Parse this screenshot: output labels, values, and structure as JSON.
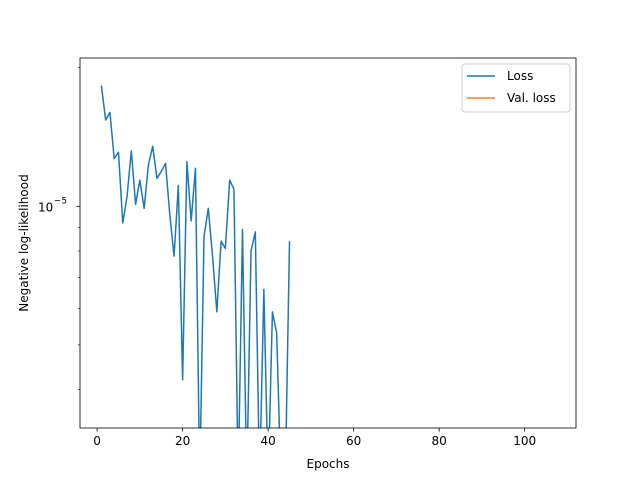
{
  "chart_data": {
    "type": "line",
    "xlabel": "Epochs",
    "ylabel": "Negative log-likelihood",
    "xlim": [
      -4,
      112
    ],
    "ylim": [
      3.3e-06,
      2.1e-05
    ],
    "yscale": "log",
    "grid": false,
    "legend_position": "top-right",
    "x_ticks": [
      0,
      20,
      40,
      60,
      80,
      100
    ],
    "x_tick_labels": [
      "0",
      "20",
      "40",
      "60",
      "80",
      "100"
    ],
    "y_ticks": [
      1e-05
    ],
    "y_tick_labels": [
      "10",
      "−5"
    ],
    "series": [
      {
        "name": "Loss",
        "color": "#1f77b4",
        "x": [
          1,
          2,
          3,
          4,
          5,
          6,
          7,
          8,
          9,
          10,
          11,
          12,
          13,
          14,
          15,
          16,
          17,
          18,
          19,
          20,
          21,
          22,
          23,
          24,
          25,
          26,
          27,
          28,
          29,
          30,
          31,
          32,
          33,
          34,
          35,
          36,
          37,
          38,
          39,
          40,
          41,
          42,
          43,
          44,
          45
        ],
        "y": [
          1.83e-05,
          1.54e-05,
          1.6e-05,
          1.27e-05,
          1.31e-05,
          9.2e-06,
          1.05e-05,
          1.32e-05,
          1.01e-05,
          1.14e-05,
          9.9e-06,
          1.23e-05,
          1.35e-05,
          1.15e-05,
          1.19e-05,
          1.24e-05,
          9.6e-06,
          7.8e-06,
          1.11e-05,
          4.2e-06,
          1.25e-05,
          9.3e-06,
          1.21e-05,
          2.5e-06,
          8.6e-06,
          9.9e-06,
          7.8e-06,
          5.9e-06,
          8.4e-06,
          8.1e-06,
          1.14e-05,
          1.09e-05,
          2.5e-06,
          8.9e-06,
          2.5e-06,
          8e-06,
          8.8e-06,
          2.5e-06,
          6.6e-06,
          2.5e-06,
          5.9e-06,
          5.3e-06,
          2.5e-06,
          2.5e-06,
          8.4e-06
        ]
      },
      {
        "name": "Val. loss",
        "color": "#ff7f0e",
        "x": [],
        "y": []
      }
    ]
  }
}
